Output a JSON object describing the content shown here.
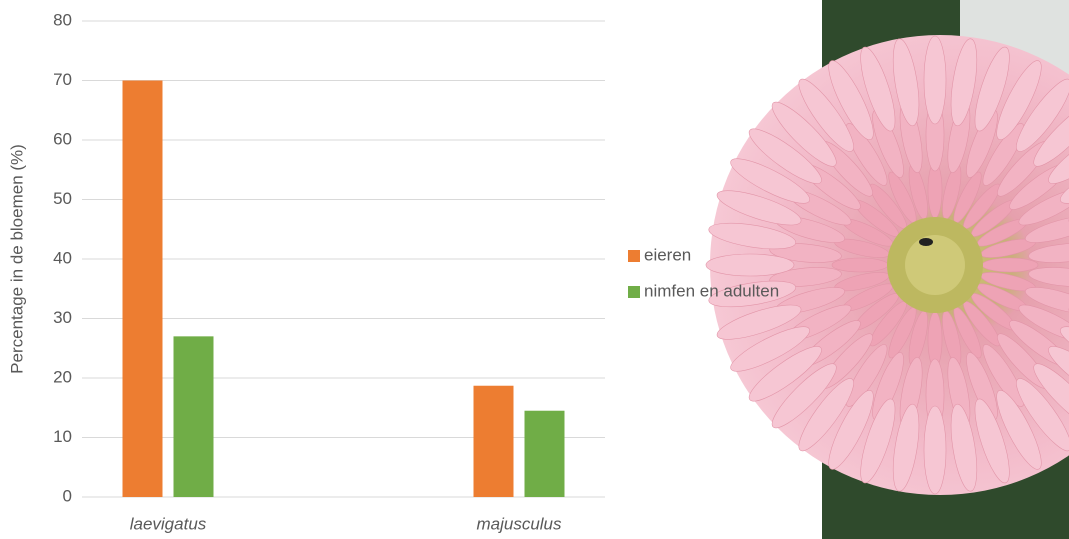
{
  "chart_data": {
    "type": "bar",
    "y_label": "Percentage in de bloemen (%)",
    "categories": [
      "laevigatus",
      "majusculus"
    ],
    "series": [
      {
        "name": "eieren",
        "color": "#ed7d31",
        "values": [
          70,
          18.7
        ]
      },
      {
        "name": "nimfen en adulten",
        "color": "#70ad47",
        "values": [
          27,
          14.5
        ]
      }
    ],
    "ylim": [
      0,
      80
    ],
    "yticks": [
      0,
      10,
      20,
      30,
      40,
      50,
      60,
      70,
      80
    ],
    "grid": true,
    "legend": "right"
  }
}
